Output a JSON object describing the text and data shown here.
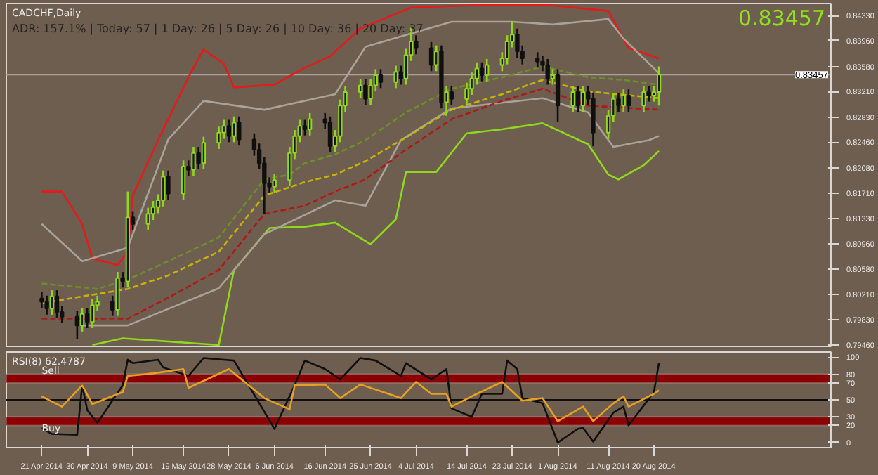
{
  "chart_data": [
    {
      "type": "candlestick",
      "title": "CADCHF,Daily",
      "subtitle": "ADR: 157.1% | Today: 57 | 1 Day: 26 | 5 Day: 26 | 10 Day: 36 | 20 Day: 37",
      "annotations": [
        "0.83457"
      ],
      "x": [
        "2014-04-21",
        "2014-04-22",
        "2014-04-23",
        "2014-04-24",
        "2014-04-25",
        "2014-04-28",
        "2014-04-29",
        "2014-04-30",
        "2014-05-01",
        "2014-05-02",
        "2014-05-05",
        "2014-05-06",
        "2014-05-07",
        "2014-05-08",
        "2014-05-09",
        "2014-05-12",
        "2014-05-13",
        "2014-05-14",
        "2014-05-15",
        "2014-05-16",
        "2014-05-19",
        "2014-05-20",
        "2014-05-21",
        "2014-05-22",
        "2014-05-23",
        "2014-05-26",
        "2014-05-27",
        "2014-05-28",
        "2014-05-29",
        "2014-05-30",
        "2014-06-02",
        "2014-06-03",
        "2014-06-04",
        "2014-06-05",
        "2014-06-06",
        "2014-06-09",
        "2014-06-10",
        "2014-06-11",
        "2014-06-12",
        "2014-06-13",
        "2014-06-16",
        "2014-06-17",
        "2014-06-18",
        "2014-06-19",
        "2014-06-20",
        "2014-06-23",
        "2014-06-24",
        "2014-06-25",
        "2014-06-26",
        "2014-06-27",
        "2014-06-30",
        "2014-07-01",
        "2014-07-02",
        "2014-07-03",
        "2014-07-04",
        "2014-07-07",
        "2014-07-08",
        "2014-07-09",
        "2014-07-10",
        "2014-07-11",
        "2014-07-14",
        "2014-07-15",
        "2014-07-16",
        "2014-07-17",
        "2014-07-18",
        "2014-07-21",
        "2014-07-22",
        "2014-07-23",
        "2014-07-24",
        "2014-07-25",
        "2014-07-28",
        "2014-07-29",
        "2014-07-30",
        "2014-07-31",
        "2014-08-01",
        "2014-08-04",
        "2014-08-05",
        "2014-08-06",
        "2014-08-07",
        "2014-08-08",
        "2014-08-11",
        "2014-08-12",
        "2014-08-13",
        "2014-08-14",
        "2014-08-15",
        "2014-08-18",
        "2014-08-19",
        "2014-08-20",
        "2014-08-21"
      ],
      "ohlc": [
        [
          0.8015,
          0.8024,
          0.8001,
          0.801
        ],
        [
          0.801,
          0.8019,
          0.7991,
          0.8
        ],
        [
          0.8,
          0.8027,
          0.7991,
          0.8018
        ],
        [
          0.8018,
          0.8027,
          0.7986,
          0.7995
        ],
        [
          0.7995,
          0.8004,
          0.7979,
          0.7988
        ],
        [
          0.7988,
          0.7997,
          0.7955,
          0.7975
        ],
        [
          0.7975,
          0.8001,
          0.7966,
          0.7992
        ],
        [
          0.7992,
          0.8001,
          0.7971,
          0.798
        ],
        [
          0.798,
          0.8014,
          0.7971,
          0.8005
        ],
        [
          0.8005,
          0.8019,
          0.7996,
          0.801
        ],
        [
          0.801,
          0.8019,
          0.7989,
          0.7998
        ],
        [
          0.7998,
          0.8054,
          0.7989,
          0.8045
        ],
        [
          0.8045,
          0.8054,
          0.8031,
          0.804
        ],
        [
          0.804,
          0.8173,
          0.8031,
          0.8135
        ],
        [
          0.8135,
          0.8144,
          0.8116,
          0.8125
        ],
        [
          0.8125,
          0.8149,
          0.8116,
          0.814
        ],
        [
          0.814,
          0.8159,
          0.8131,
          0.815
        ],
        [
          0.815,
          0.8169,
          0.8141,
          0.816
        ],
        [
          0.816,
          0.8204,
          0.8151,
          0.8195
        ],
        [
          0.8195,
          0.8204,
          0.8161,
          0.817
        ],
        [
          0.817,
          0.8219,
          0.8161,
          0.821
        ],
        [
          0.821,
          0.8219,
          0.8196,
          0.8205
        ],
        [
          0.8205,
          0.8239,
          0.8196,
          0.823
        ],
        [
          0.823,
          0.8239,
          0.8206,
          0.8215
        ],
        [
          0.8215,
          0.8254,
          0.8206,
          0.8245
        ],
        [
          0.8245,
          0.8269,
          0.8236,
          0.826
        ],
        [
          0.826,
          0.8279,
          0.8251,
          0.827
        ],
        [
          0.827,
          0.8279,
          0.8246,
          0.8255
        ],
        [
          0.8255,
          0.8284,
          0.8246,
          0.8275
        ],
        [
          0.8275,
          0.8284,
          0.8241,
          0.825
        ],
        [
          0.825,
          0.8259,
          0.8226,
          0.8235
        ],
        [
          0.8235,
          0.8244,
          0.8206,
          0.8215
        ],
        [
          0.8215,
          0.8224,
          0.814,
          0.8185
        ],
        [
          0.8185,
          0.8194,
          0.8171,
          0.818
        ],
        [
          0.818,
          0.8199,
          0.8171,
          0.819
        ],
        [
          0.819,
          0.8239,
          0.8181,
          0.823
        ],
        [
          0.823,
          0.8264,
          0.8221,
          0.8255
        ],
        [
          0.8255,
          0.8279,
          0.8246,
          0.827
        ],
        [
          0.827,
          0.8279,
          0.8256,
          0.8265
        ],
        [
          0.8265,
          0.8289,
          0.8256,
          0.828
        ],
        [
          0.828,
          0.8289,
          0.8266,
          0.8275
        ],
        [
          0.8275,
          0.8284,
          0.8231,
          0.824
        ],
        [
          0.824,
          0.8264,
          0.8231,
          0.8255
        ],
        [
          0.8255,
          0.8309,
          0.8246,
          0.83
        ],
        [
          0.83,
          0.8329,
          0.8291,
          0.832
        ],
        [
          0.832,
          0.8339,
          0.8311,
          0.833
        ],
        [
          0.833,
          0.8339,
          0.8301,
          0.831
        ],
        [
          0.831,
          0.8339,
          0.8301,
          0.833
        ],
        [
          0.833,
          0.8354,
          0.8321,
          0.8345
        ],
        [
          0.8345,
          0.8354,
          0.8326,
          0.8335
        ],
        [
          0.8335,
          0.8359,
          0.8326,
          0.835
        ],
        [
          0.835,
          0.8359,
          0.8331,
          0.834
        ],
        [
          0.834,
          0.8384,
          0.8331,
          0.8375
        ],
        [
          0.8375,
          0.8415,
          0.8366,
          0.8395
        ],
        [
          0.8395,
          0.8404,
          0.8376,
          0.8385
        ],
        [
          0.8385,
          0.8394,
          0.8351,
          0.836
        ],
        [
          0.836,
          0.8389,
          0.8351,
          0.838
        ],
        [
          0.838,
          0.8389,
          0.8296,
          0.8305
        ],
        [
          0.8305,
          0.8329,
          0.8285,
          0.832
        ],
        [
          0.832,
          0.8329,
          0.8301,
          0.831
        ],
        [
          0.831,
          0.8334,
          0.8301,
          0.8325
        ],
        [
          0.8325,
          0.8349,
          0.8316,
          0.834
        ],
        [
          0.834,
          0.8364,
          0.8331,
          0.8355
        ],
        [
          0.8355,
          0.8364,
          0.8336,
          0.8345
        ],
        [
          0.8345,
          0.8369,
          0.8336,
          0.836
        ],
        [
          0.836,
          0.8379,
          0.8351,
          0.837
        ],
        [
          0.837,
          0.8404,
          0.8361,
          0.8395
        ],
        [
          0.8395,
          0.8425,
          0.8386,
          0.8405
        ],
        [
          0.8405,
          0.8414,
          0.8371,
          0.838
        ],
        [
          0.838,
          0.8389,
          0.8361,
          0.837
        ],
        [
          0.837,
          0.8379,
          0.8356,
          0.8365
        ],
        [
          0.8365,
          0.8374,
          0.8351,
          0.836
        ],
        [
          0.836,
          0.8369,
          0.8331,
          0.834
        ],
        [
          0.834,
          0.8354,
          0.8331,
          0.8345
        ],
        [
          0.8345,
          0.8354,
          0.8276,
          0.83
        ],
        [
          0.83,
          0.8329,
          0.8291,
          0.832
        ],
        [
          0.832,
          0.8329,
          0.8291,
          0.83
        ],
        [
          0.83,
          0.8329,
          0.8291,
          0.832
        ],
        [
          0.832,
          0.8329,
          0.8301,
          0.831
        ],
        [
          0.831,
          0.8319,
          0.824,
          0.826
        ],
        [
          0.826,
          0.8294,
          0.8251,
          0.8285
        ],
        [
          0.8285,
          0.8319,
          0.8276,
          0.831
        ],
        [
          0.831,
          0.8319,
          0.8291,
          0.83
        ],
        [
          0.83,
          0.8324,
          0.8291,
          0.8315
        ],
        [
          0.8315,
          0.8324,
          0.8291,
          0.83
        ],
        [
          0.83,
          0.8329,
          0.8291,
          0.832
        ],
        [
          0.832,
          0.8329,
          0.8306,
          0.8315
        ],
        [
          0.8315,
          0.8329,
          0.8306,
          0.832
        ],
        [
          0.832,
          0.8358,
          0.83,
          0.83457
        ]
      ],
      "series": [
        {
          "type": "line",
          "color": "#e31b1b",
          "x": [
            "2014-04-21",
            "2014-04-25",
            "2014-04-29",
            "2014-05-01",
            "2014-05-06",
            "2014-05-08",
            "2014-05-09",
            "2014-05-14",
            "2014-05-20",
            "2014-05-23",
            "2014-05-27",
            "2014-05-29",
            "2014-06-06",
            "2014-06-12",
            "2014-06-17",
            "2014-06-23",
            "2014-07-03",
            "2014-07-17",
            "2014-07-30",
            "2014-08-11",
            "2014-08-15",
            "2014-08-21"
          ],
          "values": [
            0.8173,
            0.8173,
            0.8125,
            0.8074,
            0.8064,
            0.8084,
            0.8167,
            0.8249,
            0.8342,
            0.8383,
            0.8362,
            0.8327,
            0.8331,
            0.8356,
            0.8373,
            0.8414,
            0.8445,
            0.8449,
            0.8449,
            0.844,
            0.8385,
            0.837
          ]
        },
        {
          "type": "line",
          "color": "#8fd81c",
          "x": [
            "2014-05-01",
            "2014-05-07",
            "2014-05-26",
            "2014-05-29",
            "2014-06-05",
            "2014-06-12",
            "2014-06-18",
            "2014-06-25",
            "2014-06-30",
            "2014-07-02",
            "2014-07-08",
            "2014-07-14",
            "2014-07-21",
            "2014-07-29",
            "2014-08-07",
            "2014-08-11",
            "2014-08-13",
            "2014-08-18",
            "2014-08-21"
          ],
          "values": [
            0.7946,
            0.7956,
            0.7946,
            0.8057,
            0.8119,
            0.8121,
            0.8127,
            0.8095,
            0.8132,
            0.8202,
            0.8202,
            0.8259,
            0.8265,
            0.8274,
            0.8243,
            0.8198,
            0.8191,
            0.8212,
            0.8233
          ]
        },
        {
          "type": "line",
          "color": "#a8a29a",
          "x": [
            "2014-04-21",
            "2014-04-29",
            "2014-05-08",
            "2014-05-16",
            "2014-05-23",
            "2014-06-04",
            "2014-06-12",
            "2014-06-18",
            "2014-06-24",
            "2014-07-11",
            "2014-07-23",
            "2014-07-31",
            "2014-08-11",
            "2014-08-14",
            "2014-08-21"
          ],
          "values": [
            0.8125,
            0.807,
            0.809,
            0.825,
            0.8307,
            0.8294,
            0.8307,
            0.8317,
            0.8387,
            0.8424,
            0.8424,
            0.842,
            0.8428,
            0.8399,
            0.8348
          ]
        },
        {
          "type": "line",
          "color": "#a8a29a",
          "x": [
            "2014-04-29",
            "2014-05-08",
            "2014-05-26",
            "2014-06-04",
            "2014-06-18",
            "2014-06-24",
            "2014-07-01",
            "2014-07-11",
            "2014-07-29",
            "2014-08-07",
            "2014-08-12",
            "2014-08-19",
            "2014-08-21"
          ],
          "values": [
            0.7975,
            0.7975,
            0.803,
            0.811,
            0.816,
            0.8152,
            0.8249,
            0.8296,
            0.8311,
            0.829,
            0.8239,
            0.8249,
            0.8255
          ]
        },
        {
          "type": "line",
          "color": "#6b8f2a",
          "line_style": "dashed",
          "x": [
            "2014-04-21",
            "2014-05-02",
            "2014-05-08",
            "2014-05-16",
            "2014-05-26",
            "2014-06-04",
            "2014-06-09",
            "2014-06-12",
            "2014-06-18",
            "2014-06-24",
            "2014-07-02",
            "2014-07-11",
            "2014-07-21",
            "2014-07-29",
            "2014-08-07",
            "2014-08-14",
            "2014-08-21"
          ],
          "values": [
            0.8037,
            0.8029,
            0.8043,
            0.807,
            0.8105,
            0.8191,
            0.8198,
            0.8215,
            0.8228,
            0.8249,
            0.829,
            0.8325,
            0.8342,
            0.8358,
            0.8342,
            0.8338,
            0.8331
          ]
        },
        {
          "type": "line",
          "color": "#c8b400",
          "line_style": "dashed",
          "x": [
            "2014-04-21",
            "2014-05-08",
            "2014-05-16",
            "2014-05-26",
            "2014-06-04",
            "2014-06-12",
            "2014-06-18",
            "2014-06-24",
            "2014-07-02",
            "2014-07-11",
            "2014-07-21",
            "2014-07-29",
            "2014-08-07",
            "2014-08-21"
          ],
          "values": [
            0.8008,
            0.8029,
            0.8049,
            0.8084,
            0.8167,
            0.8187,
            0.8198,
            0.8218,
            0.8253,
            0.8294,
            0.8317,
            0.8338,
            0.8321,
            0.8311
          ]
        },
        {
          "type": "line",
          "color": "#b01818",
          "line_style": "dashed",
          "x": [
            "2014-04-21",
            "2014-05-08",
            "2014-05-16",
            "2014-05-26",
            "2014-06-04",
            "2014-06-12",
            "2014-06-18",
            "2014-06-24",
            "2014-07-02",
            "2014-07-11",
            "2014-07-21",
            "2014-07-29",
            "2014-08-07",
            "2014-08-21"
          ],
          "values": [
            0.7985,
            0.7985,
            0.8016,
            0.8057,
            0.814,
            0.8152,
            0.8173,
            0.8191,
            0.8235,
            0.828,
            0.8307,
            0.8325,
            0.83,
            0.8294
          ]
        }
      ],
      "xlim": [
        "2014-04-14",
        "2014-09-24"
      ],
      "ylim": [
        0.7944,
        0.8451
      ],
      "yticks": [
        {
          "value": 0.8433,
          "label": "0.84330"
        },
        {
          "value": 0.8396,
          "label": "0.83960"
        },
        {
          "value": 0.8358,
          "label": "0.83580"
        },
        {
          "value": 0.8321,
          "label": "0.83210"
        },
        {
          "value": 0.8283,
          "label": "0.82830"
        },
        {
          "value": 0.8246,
          "label": "0.82460"
        },
        {
          "value": 0.8208,
          "label": "0.82080"
        },
        {
          "value": 0.8171,
          "label": "0.81710"
        },
        {
          "value": 0.8133,
          "label": "0.81330"
        },
        {
          "value": 0.8096,
          "label": "0.80960"
        },
        {
          "value": 0.8058,
          "label": "0.80580"
        },
        {
          "value": 0.8021,
          "label": "0.80210"
        },
        {
          "value": 0.7983,
          "label": "0.79830"
        },
        {
          "value": 0.7946,
          "label": "0.79460"
        }
      ],
      "ref_lines": [
        {
          "axis": "y",
          "value": 0.83457,
          "label": "0.83457",
          "color": "#a8a29a"
        }
      ],
      "tick_labels": "y"
    },
    {
      "type": "line",
      "title": "RSI(8) 62.4787",
      "series": [
        {
          "color": "#101010",
          "x": [
            "2014-04-21",
            "2014-04-23",
            "2014-04-28",
            "2014-04-29",
            "2014-04-30",
            "2014-05-02",
            "2014-05-07",
            "2014-05-08",
            "2014-05-09",
            "2014-05-14",
            "2014-05-15",
            "2014-05-20",
            "2014-05-23",
            "2014-05-27",
            "2014-05-29",
            "2014-06-03",
            "2014-06-06",
            "2014-06-10",
            "2014-06-12",
            "2014-06-16",
            "2014-06-19",
            "2014-06-23",
            "2014-06-26",
            "2014-07-01",
            "2014-07-02",
            "2014-07-07",
            "2014-07-10",
            "2014-07-11",
            "2014-07-15",
            "2014-07-17",
            "2014-07-21",
            "2014-07-22",
            "2014-07-24",
            "2014-07-25",
            "2014-07-29",
            "2014-08-01",
            "2014-08-05",
            "2014-08-06",
            "2014-08-08",
            "2014-08-12",
            "2014-08-14",
            "2014-08-15",
            "2014-08-20",
            "2014-08-21"
          ],
          "values": [
            17,
            10,
            9,
            67,
            38,
            23,
            67,
            97,
            93,
            97,
            88,
            78,
            99,
            97,
            96,
            46,
            16,
            67,
            96,
            86,
            74,
            99,
            96,
            78,
            93,
            74,
            86,
            40,
            30,
            57,
            57,
            96,
            86,
            52,
            46,
            0,
            16,
            17,
            1,
            35,
            42,
            20,
            59,
            93
          ]
        },
        {
          "color": "#e8a020",
          "x": [
            "2014-04-21",
            "2014-04-25",
            "2014-04-29",
            "2014-05-01",
            "2014-05-07",
            "2014-05-08",
            "2014-05-13",
            "2014-05-19",
            "2014-05-20",
            "2014-05-28",
            "2014-06-04",
            "2014-06-09",
            "2014-06-10",
            "2014-06-16",
            "2014-06-19",
            "2014-06-23",
            "2014-07-01",
            "2014-07-04",
            "2014-07-07",
            "2014-07-10",
            "2014-07-11",
            "2014-07-16",
            "2014-07-21",
            "2014-07-25",
            "2014-07-29",
            "2014-08-01",
            "2014-08-06",
            "2014-08-08",
            "2014-08-12",
            "2014-08-14",
            "2014-08-15",
            "2014-08-20",
            "2014-08-21"
          ],
          "values": [
            54,
            42,
            67,
            45,
            59,
            78,
            81,
            86,
            64,
            86,
            52,
            39,
            67,
            68,
            52,
            68,
            52,
            71,
            57,
            57,
            42,
            57,
            71,
            49,
            52,
            25,
            42,
            25,
            46,
            54,
            42,
            57,
            61
          ]
        }
      ],
      "bands": [
        {
          "axis": "y",
          "from": 70,
          "to": 80,
          "color": "#8b0000"
        },
        {
          "axis": "y",
          "from": 20,
          "to": 30,
          "color": "#8b0000"
        }
      ],
      "ref_lines": [
        {
          "axis": "y",
          "value": 50,
          "color": "#101010"
        }
      ],
      "annotations": [
        {
          "text": "Sell",
          "x": "2014-04-21",
          "y": 84
        },
        {
          "text": "Buy",
          "x": "2014-04-21",
          "y": 16
        }
      ],
      "xlim": [
        "2014-04-14",
        "2014-09-24"
      ],
      "ylim": [
        -6,
        106
      ],
      "yticks": [
        100,
        80,
        70,
        50,
        30,
        20,
        0
      ],
      "xticks": [
        {
          "value": "2014-04-21",
          "label": "21 Apr 2014"
        },
        {
          "value": "2014-04-30",
          "label": "30 Apr 2014"
        },
        {
          "value": "2014-05-09",
          "label": "9 May 2014"
        },
        {
          "value": "2014-05-19",
          "label": "19 May 2014"
        },
        {
          "value": "2014-05-28",
          "label": "28 May 2014"
        },
        {
          "value": "2014-06-06",
          "label": "6 Jun 2014"
        },
        {
          "value": "2014-06-16",
          "label": "16 Jun 2014"
        },
        {
          "value": "2014-06-25",
          "label": "25 Jun 2014"
        },
        {
          "value": "2014-07-04",
          "label": "4 Jul 2014"
        },
        {
          "value": "2014-07-14",
          "label": "14 Jul 2014"
        },
        {
          "value": "2014-07-23",
          "label": "23 Jul 2014"
        },
        {
          "value": "2014-08-01",
          "label": "1 Aug 2014"
        },
        {
          "value": "2014-08-11",
          "label": "11 Aug 2014"
        },
        {
          "value": "2014-08-20",
          "label": "20 Aug 2014"
        }
      ]
    }
  ]
}
